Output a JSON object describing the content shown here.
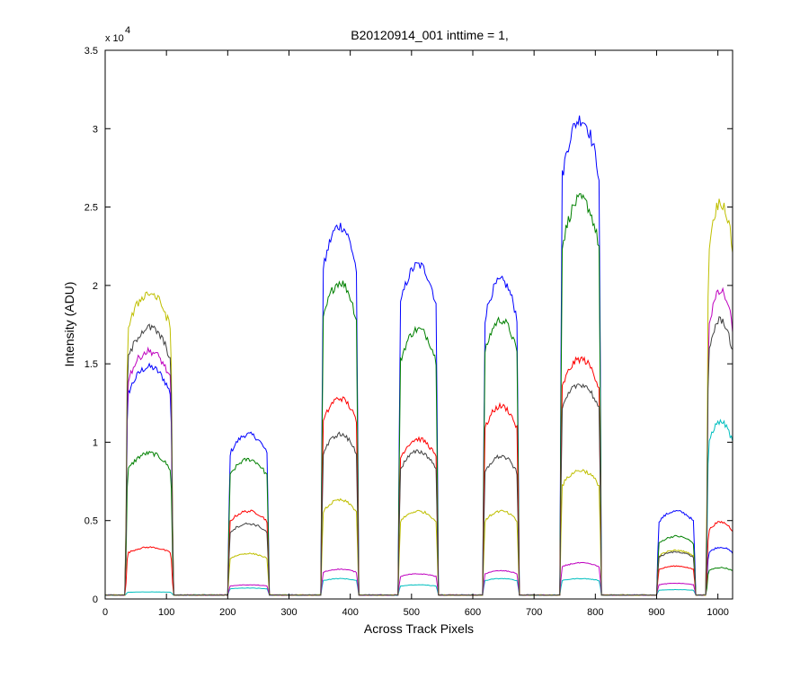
{
  "chart_data": {
    "type": "line",
    "title": "B20120914_001 inttime = 1,",
    "xlabel": "Across Track Pixels",
    "ylabel": "Intensity (ADU)",
    "xlim": [
      0,
      1024
    ],
    "ylim": [
      0,
      35000
    ],
    "y_scale_label": "x 10",
    "y_scale_exponent": "4",
    "grid": false,
    "legend": "none",
    "x_ticks": [
      0,
      100,
      200,
      300,
      400,
      500,
      600,
      700,
      800,
      900,
      1000
    ],
    "x_tick_labels": [
      "0",
      "100",
      "200",
      "300",
      "400",
      "500",
      "600",
      "700",
      "800",
      "900",
      "1000"
    ],
    "y_ticks": [
      0,
      5000,
      10000,
      15000,
      20000,
      25000,
      30000,
      35000
    ],
    "y_tick_labels": [
      "0",
      "0.5",
      "1",
      "1.5",
      "2",
      "2.5",
      "3",
      "3.5"
    ],
    "baseline": 250,
    "plateaus": [
      {
        "start": 37,
        "end": 107
      },
      {
        "start": 204,
        "end": 264
      },
      {
        "start": 356,
        "end": 410
      },
      {
        "start": 482,
        "end": 540
      },
      {
        "start": 620,
        "end": 672
      },
      {
        "start": 746,
        "end": 806
      },
      {
        "start": 904,
        "end": 960
      },
      {
        "start": 985,
        "end": 1024
      }
    ],
    "series": [
      {
        "color": "#0000ff",
        "values": [
          14800,
          10500,
          23800,
          21300,
          20300,
          30600,
          5600,
          3300
        ]
      },
      {
        "color": "#008000",
        "values": [
          9300,
          8900,
          20200,
          17200,
          17800,
          25500,
          4000,
          2000
        ]
      },
      {
        "color": "#ff0000",
        "values": [
          3300,
          5600,
          12800,
          10200,
          12300,
          15300,
          2100,
          4900
        ]
      },
      {
        "color": "#00bfbf",
        "values": [
          450,
          700,
          1300,
          900,
          1300,
          1300,
          600,
          11300
        ]
      },
      {
        "color": "#bf00bf",
        "values": [
          15800,
          900,
          1900,
          1600,
          1800,
          2300,
          1000,
          19600
        ]
      },
      {
        "color": "#bfbf00",
        "values": [
          19500,
          2900,
          6300,
          5600,
          5600,
          8200,
          3100,
          25300
        ]
      },
      {
        "color": "#404040",
        "values": [
          17300,
          4800,
          10500,
          9400,
          9100,
          13700,
          3000,
          17800
        ]
      }
    ]
  }
}
